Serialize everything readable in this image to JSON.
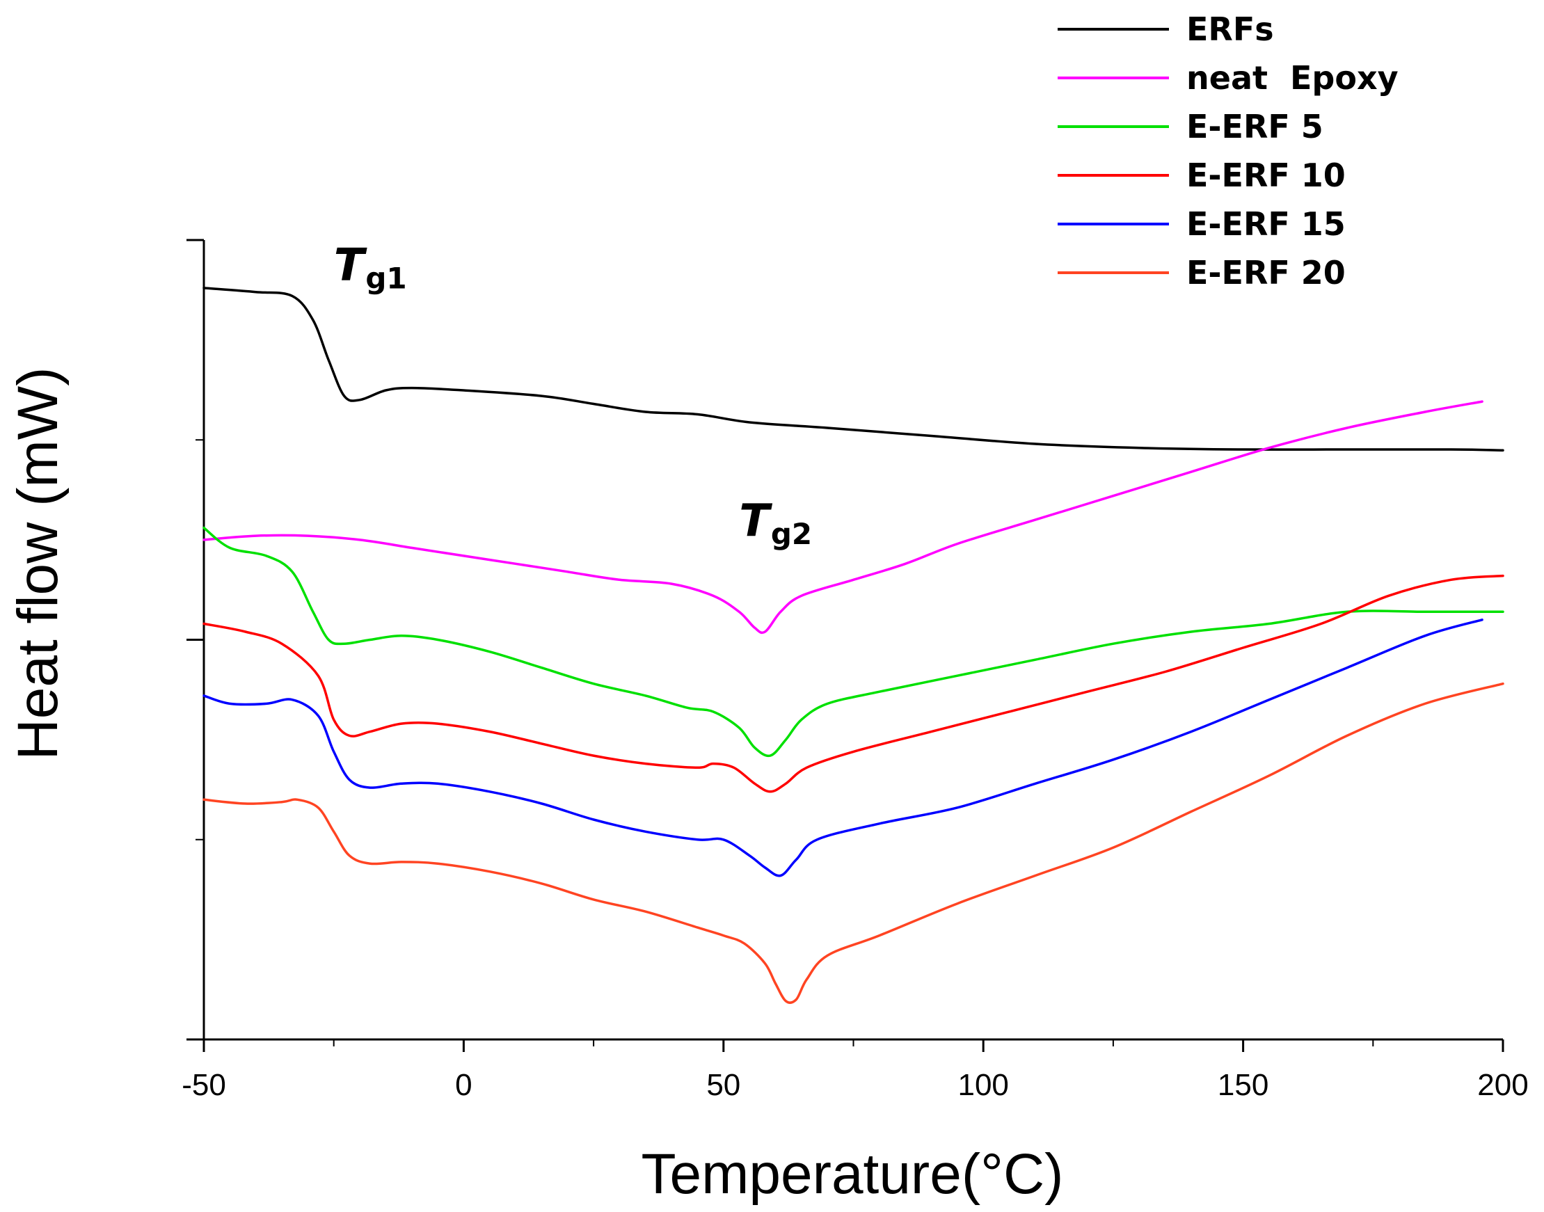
{
  "chart_data": {
    "type": "line",
    "title": "",
    "xlabel": "Temperature(°C)",
    "ylabel": "Heat flow (mW)",
    "xlim": [
      -50,
      200
    ],
    "xticks": [
      -50,
      0,
      50,
      100,
      150,
      200
    ],
    "xtick_labels": [
      "-50",
      "0",
      "50",
      "100",
      "150",
      "200"
    ],
    "ylim": [
      0,
      10
    ],
    "ytick_values": [
      0,
      5,
      10
    ],
    "yticks_labeled": false,
    "grid": false,
    "legend_position": "top-right",
    "annotations": [
      {
        "main": "T",
        "sub": "g1",
        "x": -25,
        "y": 9.5
      },
      {
        "main": "T",
        "sub": "g2",
        "x": 53,
        "y": 6.3
      }
    ],
    "series": [
      {
        "name": "ERFs",
        "color": "#000000",
        "points": [
          [
            -50,
            9.4
          ],
          [
            -40,
            9.35
          ],
          [
            -33,
            9.3
          ],
          [
            -29,
            9.0
          ],
          [
            -26,
            8.5
          ],
          [
            -23,
            8.05
          ],
          [
            -20,
            8.0
          ],
          [
            -15,
            8.12
          ],
          [
            -10,
            8.15
          ],
          [
            0,
            8.12
          ],
          [
            15,
            8.05
          ],
          [
            25,
            7.95
          ],
          [
            35,
            7.85
          ],
          [
            45,
            7.82
          ],
          [
            55,
            7.72
          ],
          [
            70,
            7.65
          ],
          [
            90,
            7.55
          ],
          [
            110,
            7.45
          ],
          [
            130,
            7.4
          ],
          [
            150,
            7.38
          ],
          [
            170,
            7.38
          ],
          [
            190,
            7.38
          ],
          [
            200,
            7.37
          ]
        ]
      },
      {
        "name": "neat  Epoxy",
        "color": "#ff00ff",
        "points": [
          [
            -50,
            6.25
          ],
          [
            -40,
            6.3
          ],
          [
            -30,
            6.3
          ],
          [
            -20,
            6.25
          ],
          [
            -10,
            6.15
          ],
          [
            0,
            6.05
          ],
          [
            10,
            5.95
          ],
          [
            20,
            5.85
          ],
          [
            30,
            5.75
          ],
          [
            40,
            5.7
          ],
          [
            48,
            5.55
          ],
          [
            53,
            5.35
          ],
          [
            56,
            5.15
          ],
          [
            58,
            5.1
          ],
          [
            61,
            5.35
          ],
          [
            65,
            5.55
          ],
          [
            75,
            5.75
          ],
          [
            85,
            5.95
          ],
          [
            95,
            6.2
          ],
          [
            110,
            6.5
          ],
          [
            125,
            6.8
          ],
          [
            140,
            7.1
          ],
          [
            155,
            7.4
          ],
          [
            170,
            7.65
          ],
          [
            185,
            7.85
          ],
          [
            196,
            7.98
          ]
        ]
      },
      {
        "name": "E-ERF 5",
        "color": "#00e000",
        "points": [
          [
            -50,
            6.4
          ],
          [
            -45,
            6.15
          ],
          [
            -38,
            6.05
          ],
          [
            -33,
            5.85
          ],
          [
            -29,
            5.35
          ],
          [
            -26,
            5.0
          ],
          [
            -23,
            4.95
          ],
          [
            -18,
            5.0
          ],
          [
            -12,
            5.05
          ],
          [
            -5,
            5.0
          ],
          [
            5,
            4.85
          ],
          [
            15,
            4.65
          ],
          [
            25,
            4.45
          ],
          [
            35,
            4.3
          ],
          [
            43,
            4.15
          ],
          [
            48,
            4.1
          ],
          [
            53,
            3.9
          ],
          [
            56,
            3.65
          ],
          [
            59,
            3.55
          ],
          [
            62,
            3.75
          ],
          [
            65,
            4.0
          ],
          [
            70,
            4.2
          ],
          [
            80,
            4.35
          ],
          [
            95,
            4.55
          ],
          [
            110,
            4.75
          ],
          [
            125,
            4.95
          ],
          [
            140,
            5.1
          ],
          [
            155,
            5.2
          ],
          [
            170,
            5.35
          ],
          [
            185,
            5.35
          ],
          [
            200,
            5.35
          ]
        ]
      },
      {
        "name": "E-ERF 10",
        "color": "#ff0000",
        "points": [
          [
            -50,
            5.2
          ],
          [
            -42,
            5.1
          ],
          [
            -35,
            4.95
          ],
          [
            -28,
            4.55
          ],
          [
            -25,
            4.0
          ],
          [
            -22,
            3.8
          ],
          [
            -18,
            3.85
          ],
          [
            -12,
            3.95
          ],
          [
            -5,
            3.95
          ],
          [
            5,
            3.85
          ],
          [
            15,
            3.7
          ],
          [
            25,
            3.55
          ],
          [
            35,
            3.45
          ],
          [
            45,
            3.4
          ],
          [
            48,
            3.45
          ],
          [
            52,
            3.4
          ],
          [
            56,
            3.2
          ],
          [
            59,
            3.1
          ],
          [
            62,
            3.2
          ],
          [
            66,
            3.4
          ],
          [
            75,
            3.6
          ],
          [
            90,
            3.85
          ],
          [
            105,
            4.1
          ],
          [
            120,
            4.35
          ],
          [
            135,
            4.6
          ],
          [
            150,
            4.9
          ],
          [
            165,
            5.2
          ],
          [
            178,
            5.55
          ],
          [
            190,
            5.75
          ],
          [
            200,
            5.8
          ]
        ]
      },
      {
        "name": "E-ERF 15",
        "color": "#0000ff",
        "points": [
          [
            -50,
            4.3
          ],
          [
            -45,
            4.2
          ],
          [
            -38,
            4.2
          ],
          [
            -33,
            4.25
          ],
          [
            -28,
            4.05
          ],
          [
            -25,
            3.6
          ],
          [
            -22,
            3.25
          ],
          [
            -18,
            3.15
          ],
          [
            -12,
            3.2
          ],
          [
            -5,
            3.2
          ],
          [
            5,
            3.1
          ],
          [
            15,
            2.95
          ],
          [
            25,
            2.75
          ],
          [
            35,
            2.6
          ],
          [
            45,
            2.5
          ],
          [
            50,
            2.5
          ],
          [
            55,
            2.3
          ],
          [
            58,
            2.15
          ],
          [
            61,
            2.05
          ],
          [
            64,
            2.25
          ],
          [
            68,
            2.5
          ],
          [
            80,
            2.7
          ],
          [
            95,
            2.9
          ],
          [
            110,
            3.2
          ],
          [
            125,
            3.5
          ],
          [
            140,
            3.85
          ],
          [
            155,
            4.25
          ],
          [
            170,
            4.65
          ],
          [
            185,
            5.05
          ],
          [
            196,
            5.25
          ]
        ]
      },
      {
        "name": "E-ERF 20",
        "color": "#ff4422",
        "points": [
          [
            -50,
            3.0
          ],
          [
            -42,
            2.95
          ],
          [
            -35,
            2.97
          ],
          [
            -32,
            3.0
          ],
          [
            -28,
            2.9
          ],
          [
            -25,
            2.6
          ],
          [
            -22,
            2.3
          ],
          [
            -18,
            2.2
          ],
          [
            -12,
            2.22
          ],
          [
            -5,
            2.2
          ],
          [
            5,
            2.1
          ],
          [
            15,
            1.95
          ],
          [
            25,
            1.75
          ],
          [
            35,
            1.6
          ],
          [
            45,
            1.4
          ],
          [
            50,
            1.3
          ],
          [
            54,
            1.2
          ],
          [
            58,
            0.95
          ],
          [
            60,
            0.7
          ],
          [
            62,
            0.48
          ],
          [
            64,
            0.5
          ],
          [
            66,
            0.75
          ],
          [
            70,
            1.05
          ],
          [
            80,
            1.3
          ],
          [
            95,
            1.7
          ],
          [
            110,
            2.05
          ],
          [
            125,
            2.4
          ],
          [
            140,
            2.85
          ],
          [
            155,
            3.3
          ],
          [
            170,
            3.8
          ],
          [
            185,
            4.2
          ],
          [
            200,
            4.45
          ]
        ]
      }
    ]
  }
}
